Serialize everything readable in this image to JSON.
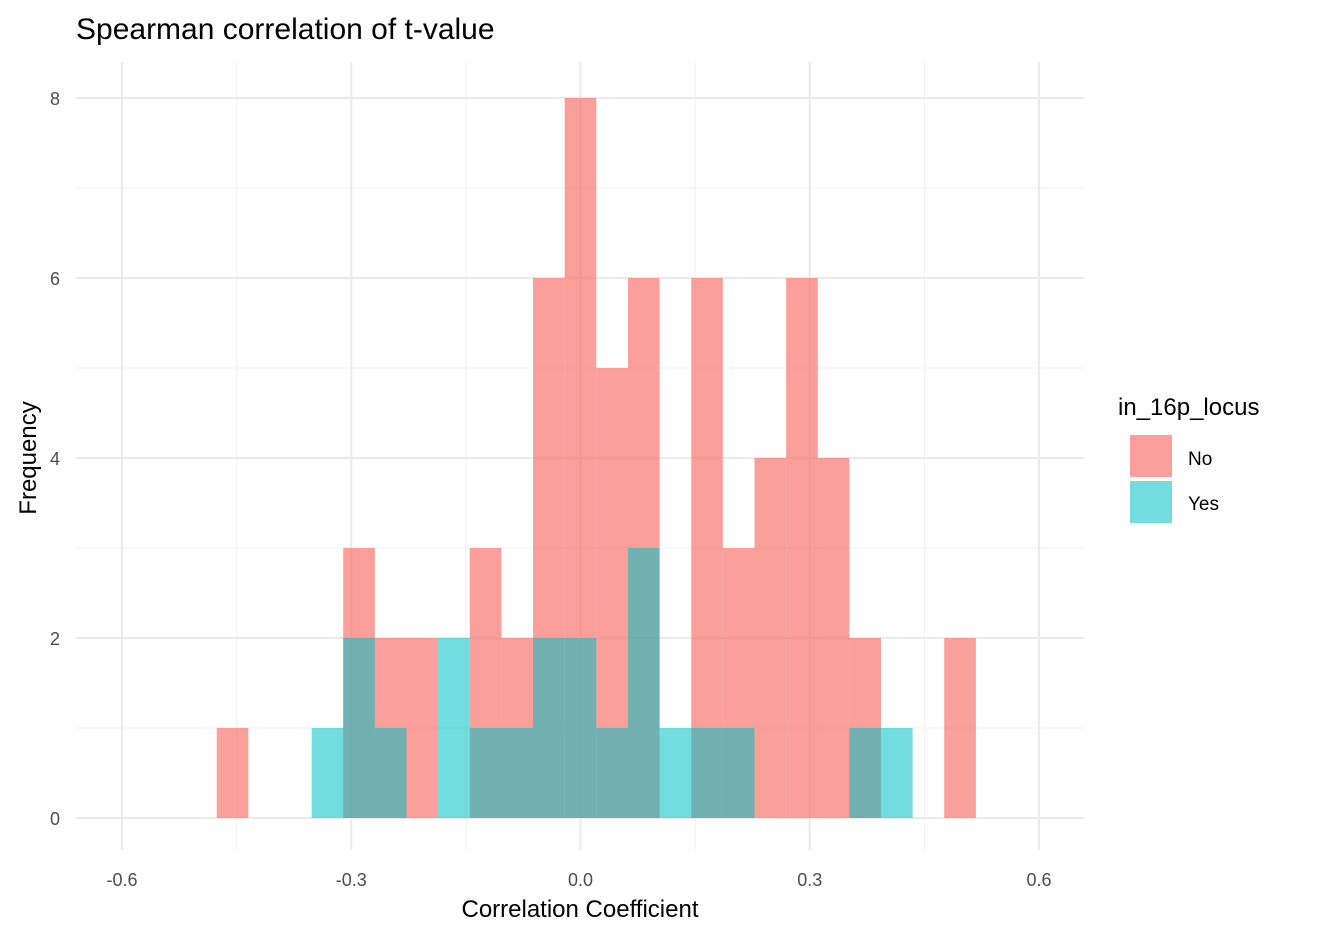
{
  "chart_data": {
    "type": "bar",
    "subtype": "overlapping-histogram",
    "title": "Spearman correlation of t-value",
    "xlabel": "Correlation Coefficient",
    "ylabel": "Frequency",
    "xlim": [
      -0.6,
      0.6
    ],
    "ylim": [
      0,
      8
    ],
    "x_ticks": [
      "-0.6",
      "-0.3",
      "0.0",
      "0.3",
      "0.6"
    ],
    "y_ticks": [
      "0",
      "2",
      "4",
      "6",
      "8"
    ],
    "bin_width": 0.0414,
    "bin_centers": [
      -0.4553,
      -0.4139,
      -0.3725,
      -0.3311,
      -0.2898,
      -0.2484,
      -0.207,
      -0.1656,
      -0.1242,
      -0.0828,
      -0.0414,
      0.0,
      0.0414,
      0.0828,
      0.1242,
      0.1656,
      0.207,
      0.2484,
      0.2898,
      0.3311,
      0.3725,
      0.4139,
      0.4553,
      0.4967
    ],
    "series": [
      {
        "name": "No",
        "color": "#F8766D",
        "values": [
          1,
          0,
          0,
          0,
          3,
          2,
          2,
          0,
          3,
          2,
          6,
          8,
          5,
          6,
          0,
          6,
          3,
          4,
          6,
          4,
          2,
          0,
          0,
          2
        ]
      },
      {
        "name": "Yes",
        "color": "#00BFC4",
        "values": [
          0,
          0,
          0,
          1,
          2,
          1,
          0,
          2,
          1,
          1,
          2,
          2,
          1,
          3,
          1,
          1,
          1,
          0,
          0,
          0,
          1,
          1,
          0,
          0
        ]
      }
    ],
    "legend": {
      "title": "in_16p_locus",
      "position": "right"
    },
    "grid": true
  }
}
